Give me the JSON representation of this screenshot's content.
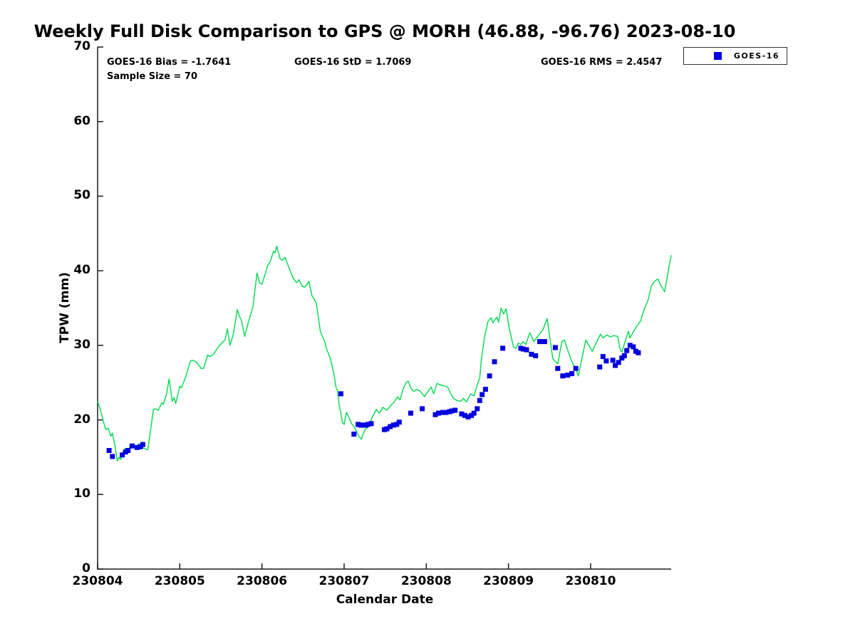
{
  "title": "Weekly Full Disk Comparison to GPS @ MORH (46.88, -96.76) 2023-08-10",
  "stats": {
    "bias": "GOES-16 Bias = -1.7641",
    "std": "GOES-16 StD = 1.7069",
    "rms": "GOES-16 RMS = 2.4547",
    "sample_size": "Sample Size = 70"
  },
  "legend": {
    "label": "GOES-16"
  },
  "colors": {
    "gps_line": "#00d94d",
    "goes_marker": "#0000e0",
    "axis": "#1a1a1a"
  },
  "chart_data": {
    "type": "line+scatter",
    "title": "Weekly Full Disk Comparison to GPS @ MORH (46.88, -96.76) 2023-08-10",
    "xlabel": "Calendar Date",
    "ylabel": "TPW (mm)",
    "ylim": [
      0,
      70
    ],
    "xlim_days": [
      0,
      6.98
    ],
    "y_ticks": [
      0,
      10,
      20,
      30,
      40,
      50,
      60,
      70
    ],
    "x_tick_days": [
      0,
      1,
      2,
      3,
      4,
      5,
      6
    ],
    "x_tick_labels": [
      "230804",
      "230805",
      "230806",
      "230807",
      "230808",
      "230809",
      "230810"
    ],
    "grid": false,
    "legend_position": "top-right",
    "series": [
      {
        "name": "GPS",
        "type": "line",
        "color": "#00d94d",
        "points": [
          [
            0.0,
            22.5
          ],
          [
            0.03,
            21.5
          ],
          [
            0.07,
            19.8
          ],
          [
            0.1,
            18.7
          ],
          [
            0.13,
            18.9
          ],
          [
            0.16,
            17.8
          ],
          [
            0.18,
            18.2
          ],
          [
            0.21,
            16.6
          ],
          [
            0.24,
            14.5
          ],
          [
            0.26,
            15.0
          ],
          [
            0.28,
            14.7
          ],
          [
            0.32,
            16.0
          ],
          [
            0.34,
            16.2
          ],
          [
            0.37,
            15.8
          ],
          [
            0.4,
            16.6
          ],
          [
            0.43,
            16.7
          ],
          [
            0.46,
            16.3
          ],
          [
            0.5,
            16.8
          ],
          [
            0.53,
            16.6
          ],
          [
            0.56,
            16.2
          ],
          [
            0.61,
            16.0
          ],
          [
            0.68,
            21.4
          ],
          [
            0.7,
            21.5
          ],
          [
            0.74,
            21.3
          ],
          [
            0.78,
            22.3
          ],
          [
            0.8,
            22.1
          ],
          [
            0.84,
            23.5
          ],
          [
            0.87,
            25.5
          ],
          [
            0.91,
            22.5
          ],
          [
            0.93,
            23.0
          ],
          [
            0.95,
            22.2
          ],
          [
            1.0,
            24.5
          ],
          [
            1.02,
            24.3
          ],
          [
            1.07,
            25.7
          ],
          [
            1.13,
            27.9
          ],
          [
            1.15,
            28.0
          ],
          [
            1.2,
            27.8
          ],
          [
            1.26,
            26.9
          ],
          [
            1.29,
            26.9
          ],
          [
            1.34,
            28.7
          ],
          [
            1.37,
            28.5
          ],
          [
            1.41,
            28.8
          ],
          [
            1.47,
            29.8
          ],
          [
            1.51,
            30.3
          ],
          [
            1.55,
            30.7
          ],
          [
            1.58,
            32.2
          ],
          [
            1.61,
            30.0
          ],
          [
            1.65,
            31.4
          ],
          [
            1.7,
            34.8
          ],
          [
            1.72,
            34.0
          ],
          [
            1.75,
            33.4
          ],
          [
            1.79,
            31.2
          ],
          [
            1.84,
            33.3
          ],
          [
            1.89,
            35.2
          ],
          [
            1.94,
            39.7
          ],
          [
            1.97,
            38.4
          ],
          [
            2.0,
            38.2
          ],
          [
            2.04,
            39.6
          ],
          [
            2.07,
            40.7
          ],
          [
            2.1,
            41.2
          ],
          [
            2.14,
            42.6
          ],
          [
            2.16,
            42.4
          ],
          [
            2.18,
            43.3
          ],
          [
            2.22,
            41.6
          ],
          [
            2.25,
            41.4
          ],
          [
            2.28,
            41.8
          ],
          [
            2.34,
            40.1
          ],
          [
            2.38,
            39.0
          ],
          [
            2.42,
            38.4
          ],
          [
            2.45,
            38.8
          ],
          [
            2.49,
            37.9
          ],
          [
            2.52,
            37.8
          ],
          [
            2.55,
            38.2
          ],
          [
            2.57,
            38.6
          ],
          [
            2.61,
            36.6
          ],
          [
            2.63,
            36.3
          ],
          [
            2.66,
            35.7
          ],
          [
            2.69,
            33.5
          ],
          [
            2.71,
            31.9
          ],
          [
            2.76,
            30.6
          ],
          [
            2.79,
            29.4
          ],
          [
            2.83,
            28.3
          ],
          [
            2.85,
            27.4
          ],
          [
            2.88,
            25.9
          ],
          [
            2.9,
            24.4
          ],
          [
            2.92,
            23.9
          ],
          [
            2.94,
            21.9
          ],
          [
            2.96,
            20.9
          ],
          [
            2.98,
            19.6
          ],
          [
            3.0,
            19.4
          ],
          [
            3.03,
            21.0
          ],
          [
            3.06,
            20.3
          ],
          [
            3.09,
            19.5
          ],
          [
            3.12,
            19.1
          ],
          [
            3.15,
            18.5
          ],
          [
            3.18,
            17.8
          ],
          [
            3.21,
            17.4
          ],
          [
            3.23,
            18.1
          ],
          [
            3.26,
            18.8
          ],
          [
            3.29,
            19.0
          ],
          [
            3.31,
            19.6
          ],
          [
            3.39,
            21.4
          ],
          [
            3.43,
            20.9
          ],
          [
            3.47,
            21.7
          ],
          [
            3.52,
            21.3
          ],
          [
            3.58,
            22.1
          ],
          [
            3.61,
            22.4
          ],
          [
            3.65,
            23.1
          ],
          [
            3.68,
            22.7
          ],
          [
            3.72,
            24.2
          ],
          [
            3.76,
            25.1
          ],
          [
            3.78,
            25.2
          ],
          [
            3.81,
            24.3
          ],
          [
            3.85,
            23.8
          ],
          [
            3.88,
            24.1
          ],
          [
            3.92,
            23.9
          ],
          [
            3.98,
            23.1
          ],
          [
            4.02,
            23.8
          ],
          [
            4.06,
            24.4
          ],
          [
            4.09,
            23.5
          ],
          [
            4.13,
            24.9
          ],
          [
            4.17,
            24.7
          ],
          [
            4.21,
            24.6
          ],
          [
            4.26,
            24.4
          ],
          [
            4.29,
            23.7
          ],
          [
            4.33,
            22.9
          ],
          [
            4.37,
            22.6
          ],
          [
            4.42,
            22.5
          ],
          [
            4.45,
            22.9
          ],
          [
            4.49,
            22.4
          ],
          [
            4.54,
            23.5
          ],
          [
            4.58,
            23.2
          ],
          [
            4.62,
            24.7
          ],
          [
            4.65,
            25.6
          ],
          [
            4.67,
            28.1
          ],
          [
            4.71,
            31.2
          ],
          [
            4.75,
            33.2
          ],
          [
            4.79,
            33.7
          ],
          [
            4.81,
            33.0
          ],
          [
            4.86,
            33.8
          ],
          [
            4.88,
            33.1
          ],
          [
            4.91,
            35.0
          ],
          [
            4.94,
            34.2
          ],
          [
            4.97,
            34.9
          ],
          [
            5.01,
            32.3
          ],
          [
            5.06,
            29.8
          ],
          [
            5.09,
            29.6
          ],
          [
            5.12,
            30.3
          ],
          [
            5.15,
            30.1
          ],
          [
            5.18,
            30.5
          ],
          [
            5.21,
            30.1
          ],
          [
            5.26,
            31.7
          ],
          [
            5.31,
            30.5
          ],
          [
            5.37,
            31.4
          ],
          [
            5.42,
            32.1
          ],
          [
            5.47,
            33.6
          ],
          [
            5.54,
            28.2
          ],
          [
            5.6,
            27.5
          ],
          [
            5.65,
            30.5
          ],
          [
            5.68,
            30.7
          ],
          [
            5.76,
            28.1
          ],
          [
            5.82,
            26.8
          ],
          [
            5.85,
            25.9
          ],
          [
            5.94,
            30.7
          ],
          [
            6.02,
            29.2
          ],
          [
            6.12,
            31.5
          ],
          [
            6.15,
            31.0
          ],
          [
            6.2,
            31.4
          ],
          [
            6.24,
            31.1
          ],
          [
            6.28,
            31.3
          ],
          [
            6.33,
            31.2
          ],
          [
            6.36,
            29.4
          ],
          [
            6.38,
            29.1
          ],
          [
            6.46,
            31.9
          ],
          [
            6.48,
            31.0
          ],
          [
            6.53,
            32.0
          ],
          [
            6.57,
            32.7
          ],
          [
            6.61,
            33.3
          ],
          [
            6.65,
            34.8
          ],
          [
            6.7,
            36.1
          ],
          [
            6.74,
            38.0
          ],
          [
            6.78,
            38.6
          ],
          [
            6.82,
            38.9
          ],
          [
            6.85,
            38.1
          ],
          [
            6.89,
            37.4
          ],
          [
            6.9,
            37.2
          ],
          [
            6.96,
            40.9
          ],
          [
            6.98,
            42.1
          ]
        ]
      },
      {
        "name": "GOES-16",
        "type": "scatter",
        "color": "#0000e0",
        "marker": "square",
        "points": [
          [
            0.14,
            15.9
          ],
          [
            0.18,
            15.1
          ],
          [
            0.3,
            15.3
          ],
          [
            0.34,
            15.7
          ],
          [
            0.37,
            15.9
          ],
          [
            0.42,
            16.5
          ],
          [
            0.48,
            16.3
          ],
          [
            0.52,
            16.4
          ],
          [
            0.55,
            16.7
          ],
          [
            2.96,
            23.5
          ],
          [
            3.12,
            18.1
          ],
          [
            3.17,
            19.4
          ],
          [
            3.2,
            19.3
          ],
          [
            3.23,
            19.3
          ],
          [
            3.26,
            19.3
          ],
          [
            3.29,
            19.4
          ],
          [
            3.33,
            19.5
          ],
          [
            3.49,
            18.7
          ],
          [
            3.52,
            18.8
          ],
          [
            3.56,
            19.1
          ],
          [
            3.6,
            19.3
          ],
          [
            3.64,
            19.4
          ],
          [
            3.67,
            19.7
          ],
          [
            3.81,
            20.9
          ],
          [
            3.95,
            21.5
          ],
          [
            4.11,
            20.7
          ],
          [
            4.15,
            20.9
          ],
          [
            4.2,
            21.0
          ],
          [
            4.24,
            21.0
          ],
          [
            4.28,
            21.1
          ],
          [
            4.31,
            21.2
          ],
          [
            4.35,
            21.3
          ],
          [
            4.43,
            20.8
          ],
          [
            4.47,
            20.6
          ],
          [
            4.51,
            20.4
          ],
          [
            4.55,
            20.6
          ],
          [
            4.58,
            20.9
          ],
          [
            4.62,
            21.5
          ],
          [
            4.65,
            22.6
          ],
          [
            4.68,
            23.4
          ],
          [
            4.72,
            24.1
          ],
          [
            4.77,
            25.9
          ],
          [
            4.83,
            27.8
          ],
          [
            4.93,
            29.6
          ],
          [
            5.15,
            29.6
          ],
          [
            5.18,
            29.5
          ],
          [
            5.22,
            29.4
          ],
          [
            5.28,
            28.8
          ],
          [
            5.33,
            28.6
          ],
          [
            5.38,
            30.5
          ],
          [
            5.44,
            30.5
          ],
          [
            5.57,
            29.7
          ],
          [
            5.6,
            26.9
          ],
          [
            5.66,
            25.9
          ],
          [
            5.72,
            26.0
          ],
          [
            5.77,
            26.2
          ],
          [
            5.82,
            26.9
          ],
          [
            6.11,
            27.1
          ],
          [
            6.15,
            28.5
          ],
          [
            6.19,
            27.9
          ],
          [
            6.27,
            28.0
          ],
          [
            6.3,
            27.3
          ],
          [
            6.34,
            27.7
          ],
          [
            6.38,
            28.3
          ],
          [
            6.41,
            28.6
          ],
          [
            6.44,
            29.3
          ],
          [
            6.48,
            30.0
          ],
          [
            6.52,
            29.8
          ],
          [
            6.55,
            29.2
          ],
          [
            6.58,
            29.0
          ]
        ]
      }
    ]
  }
}
